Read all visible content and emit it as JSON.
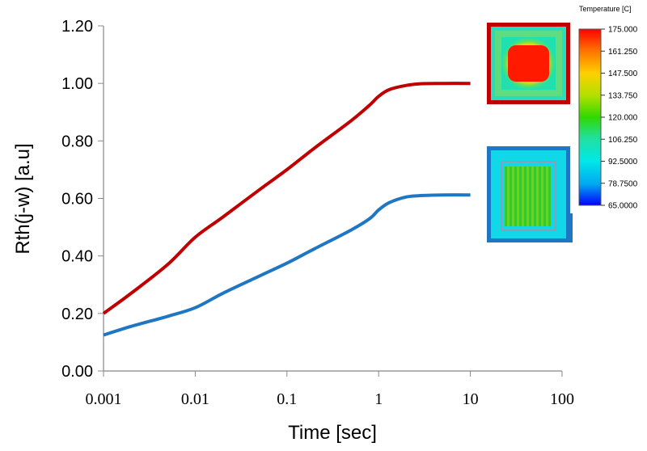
{
  "chart_data": {
    "type": "line",
    "xlabel": "Time [sec]",
    "ylabel": "Rth(j-w) [a.u]",
    "x_scale": "log",
    "xlim": [
      0.001,
      100
    ],
    "ylim": [
      0,
      1.2
    ],
    "x_tick_labels": [
      "0.001",
      "0.01",
      "0.1",
      "1",
      "10",
      "100"
    ],
    "y_tick_labels": [
      "0.00",
      "0.20",
      "0.40",
      "0.60",
      "0.80",
      "1.00",
      "1.20"
    ],
    "grid": false,
    "series": [
      {
        "color": "#c00000",
        "x": [
          0.001,
          0.002,
          0.005,
          0.01,
          0.02,
          0.05,
          0.1,
          0.2,
          0.5,
          0.8,
          1,
          1.3,
          2,
          3,
          5,
          10
        ],
        "y": [
          0.2,
          0.27,
          0.37,
          0.465,
          0.535,
          0.63,
          0.7,
          0.775,
          0.87,
          0.925,
          0.955,
          0.978,
          0.993,
          0.999,
          1.0,
          1.0
        ]
      },
      {
        "color": "#1f77c4",
        "x": [
          0.001,
          0.002,
          0.005,
          0.01,
          0.02,
          0.05,
          0.1,
          0.2,
          0.5,
          0.8,
          1,
          1.3,
          2,
          3,
          5,
          10
        ],
        "y": [
          0.125,
          0.155,
          0.19,
          0.22,
          0.27,
          0.33,
          0.375,
          0.425,
          0.49,
          0.53,
          0.56,
          0.585,
          0.605,
          0.61,
          0.612,
          0.612
        ]
      }
    ]
  },
  "colorbar": {
    "title": "Temperature [C]",
    "ticks": [
      "175.000",
      "161.250",
      "147.500",
      "133.750",
      "120.000",
      "106.250",
      "92.5000",
      "78.7500",
      "65.0000"
    ],
    "colors": [
      "#ff0000",
      "#ff8000",
      "#ffd000",
      "#c8e000",
      "#40d800",
      "#20e0a0",
      "#00e8e8",
      "#00a8f0",
      "#0000ff"
    ]
  },
  "thermal_maps": [
    {
      "name": "hot-map",
      "frame_color": "#c00000"
    },
    {
      "name": "cool-map",
      "frame_color": "#1f77c4"
    }
  ]
}
